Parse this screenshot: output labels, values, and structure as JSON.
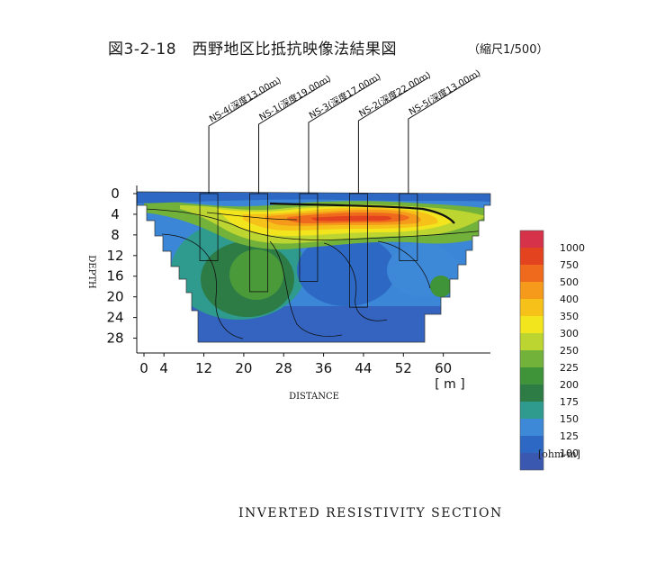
{
  "figure": {
    "title": "図3-2-18　西野地区比抵抗映像法結果図",
    "scale_note": "（縮尺1/500）",
    "caption": "INVERTED RESISTIVITY SECTION",
    "unit_label": "[ohm-m]"
  },
  "chart_data": {
    "type": "heatmap",
    "xlabel": "DISTANCE",
    "xunit_label": "[ m ]",
    "ylabel": "DEPTH",
    "x_ticks": [
      0,
      4,
      12,
      20,
      28,
      36,
      44,
      52,
      60
    ],
    "y_ticks": [
      0,
      4,
      8,
      12,
      16,
      20,
      24,
      28
    ],
    "xlim": [
      0,
      68
    ],
    "ylim": [
      0,
      30
    ],
    "colorbar": {
      "levels": [
        {
          "label": "1000",
          "color": "#d6334a"
        },
        {
          "label": "750",
          "color": "#e3431f"
        },
        {
          "label": "500",
          "color": "#ef6a1c"
        },
        {
          "label": "400",
          "color": "#f59a1a"
        },
        {
          "label": "350",
          "color": "#f6c21a"
        },
        {
          "label": "300",
          "color": "#f3e51d"
        },
        {
          "label": "250",
          "color": "#bdd531"
        },
        {
          "label": "225",
          "color": "#72b23a"
        },
        {
          "label": "200",
          "color": "#3f9338"
        },
        {
          "label": "175",
          "color": "#2d7b45"
        },
        {
          "label": "150",
          "color": "#2f9a8e"
        },
        {
          "label": "125",
          "color": "#3e88d8"
        },
        {
          "label": "100",
          "color": "#2c68c4"
        }
      ],
      "bottom_color": "#3b58b0"
    },
    "boreholes": [
      {
        "name": "NS-4",
        "depth_label": "(深度13.00m)",
        "x": 13,
        "depth": 13
      },
      {
        "name": "NS-1",
        "depth_label": "(深度19.00m)",
        "x": 23,
        "depth": 19
      },
      {
        "name": "NS-3",
        "depth_label": "(深度17.00m)",
        "x": 33,
        "depth": 17
      },
      {
        "name": "NS-2",
        "depth_label": "(深度22.00m)",
        "x": 43,
        "depth": 22
      },
      {
        "name": "NS-5",
        "depth_label": "(深度13.00m)",
        "x": 53,
        "depth": 13
      }
    ]
  }
}
